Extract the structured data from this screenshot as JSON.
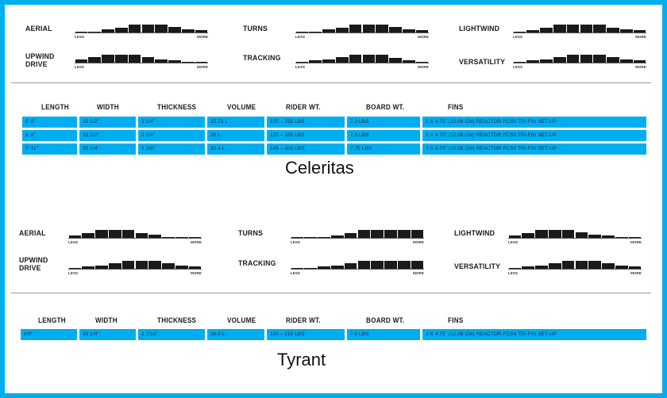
{
  "boards": [
    {
      "name": "Celeritas",
      "ratings": [
        {
          "label": "AERIAL",
          "bars": [
            1,
            1,
            3,
            4,
            7,
            7,
            7,
            5,
            3,
            2
          ]
        },
        {
          "label": "TURNS",
          "bars": [
            1,
            1,
            3,
            4,
            7,
            7,
            7,
            5,
            3,
            2
          ]
        },
        {
          "label": "LIGHTWIND",
          "bars": [
            1,
            2,
            4,
            7,
            7,
            7,
            7,
            4,
            3,
            2
          ]
        },
        {
          "label": "UPWIND\nDRIVE",
          "bars": [
            3,
            5,
            7,
            7,
            7,
            5,
            3,
            2,
            1,
            1
          ]
        },
        {
          "label": "TRACKING",
          "bars": [
            1,
            2,
            3,
            5,
            7,
            7,
            7,
            4,
            2,
            1
          ]
        },
        {
          "label": "VERSATILITY",
          "bars": [
            1,
            2,
            3,
            5,
            7,
            7,
            7,
            5,
            3,
            2
          ]
        }
      ],
      "table": {
        "headers": [
          "LENGTH",
          "WIDTH",
          "THICKNESS",
          "VOLUME",
          "RIDER WT.",
          "BOARD WT.",
          "FINS"
        ],
        "rows": [
          [
            "5' 6\"",
            "18 1/2\"",
            "2 1/4\"",
            "23.75 L",
            "100 – 155 LBS",
            "7.3 LBS",
            "3 X 4.75\" (12.08 CM) REACTOR FCSII TRI-FIN SET-UP"
          ],
          [
            "5' 8\"",
            "18 1/2\"",
            "2 1/4\"",
            "26 L",
            "120 – 185 LBS",
            "7.5 LBS",
            "3 X 4.75\" (12.08 CM) REACTOR FCSII TRI-FIN SET-UP"
          ],
          [
            "5' 11\"",
            "20 1/4\"",
            "2 3/8\"",
            "32.4 L",
            "145 – 205 LBS",
            "7.75 LBS",
            "3 X 4.75\" (12.08 CM) REACTOR FCSII TRI-FIN SET-UP"
          ]
        ]
      }
    },
    {
      "name": "Tyrant",
      "ratings": [
        {
          "label": "AERIAL",
          "bars": [
            2,
            4,
            7,
            7,
            7,
            4,
            3,
            1,
            1,
            1
          ]
        },
        {
          "label": "TURNS",
          "bars": [
            1,
            1,
            1,
            2,
            4,
            7,
            7,
            7,
            7,
            7
          ]
        },
        {
          "label": "LIGHTWIND",
          "bars": [
            2,
            4,
            7,
            7,
            7,
            5,
            3,
            2,
            1,
            1
          ]
        },
        {
          "label": "UPWIND\nDRIVE",
          "bars": [
            1,
            2,
            3,
            5,
            7,
            7,
            7,
            5,
            3,
            2
          ]
        },
        {
          "label": "TRACKING",
          "bars": [
            1,
            1,
            2,
            3,
            5,
            7,
            7,
            7,
            7,
            7
          ]
        },
        {
          "label": "VERSATILITY",
          "bars": [
            1,
            2,
            3,
            5,
            7,
            7,
            7,
            5,
            3,
            2
          ]
        }
      ],
      "table": {
        "headers": [
          "LENGTH",
          "WIDTH",
          "THICKNESS",
          "VOLUME",
          "RIDER WT.",
          "BOARD WT.",
          "FINS"
        ],
        "rows": [
          [
            "6'0\"",
            "18 1/4\"",
            "2 7/16\"",
            "26.6 L",
            "100 – 210 LBS",
            "7.8 LBS",
            "3 X 4.75\" (12.08 CM) REACTOR FCSII TRI-FIN SET-UP"
          ]
        ]
      }
    }
  ],
  "scale": {
    "less": "LESS",
    "more": "MORE"
  },
  "colors": {
    "accent": "#00aeef",
    "bar": "#1a1a1a"
  }
}
